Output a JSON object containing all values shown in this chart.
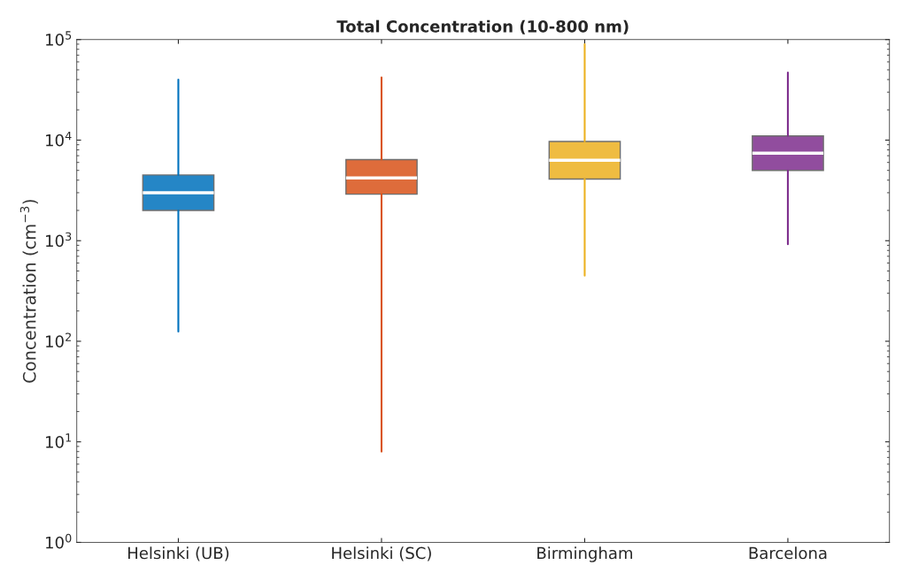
{
  "chart_data": {
    "type": "box",
    "title": "Total Concentration (10-800 nm)",
    "ylabel": "Concentration (cm$^{−3}$)",
    "categories": [
      "Helsinki (UB)",
      "Helsinki (SC)",
      "Birmingham",
      "Barcelona"
    ],
    "colors": [
      "#0072bd",
      "#d95319",
      "#edb120",
      "#7e2f8e"
    ],
    "boxes": [
      {
        "low": 125,
        "q1": 2000,
        "median": 3000,
        "q3": 4500,
        "high": 40000
      },
      {
        "low": 8,
        "q1": 2900,
        "median": 4200,
        "q3": 6400,
        "high": 42000
      },
      {
        "low": 450,
        "q1": 4100,
        "median": 6300,
        "q3": 9700,
        "high": 90000
      },
      {
        "low": 920,
        "q1": 5000,
        "median": 7400,
        "q3": 11000,
        "high": 47000
      }
    ],
    "log": true,
    "ylim": [
      1,
      100000
    ],
    "yticks": [
      {
        "value": 1,
        "label": "10$^{0}$"
      },
      {
        "value": 10,
        "label": "10$^{1}$"
      },
      {
        "value": 100,
        "label": "10$^{2}$"
      },
      {
        "value": 1000,
        "label": "10$^{3}$"
      },
      {
        "value": 10000,
        "label": "10$^{4}$"
      },
      {
        "value": 100000,
        "label": "10$^{5}$"
      }
    ],
    "grid": false,
    "legend": false
  }
}
